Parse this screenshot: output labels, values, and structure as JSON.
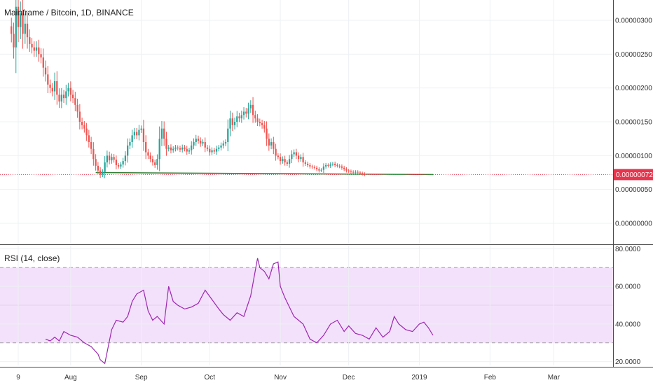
{
  "header": {
    "title": "Mainframe / Bitcoin, 1D, BINANCE"
  },
  "price_panel": {
    "last_price_label": "0.00000072",
    "last_price_color": "#e8344c",
    "up_color": "#26a69a",
    "down_color": "#ef5350"
  },
  "rsi_panel": {
    "title": "RSI (14, close)",
    "line_color": "#9c27b0",
    "band_color": "#f3e0fb"
  },
  "chart_data": [
    {
      "type": "candlestick",
      "name": "price",
      "ylim": [
        -3e-07,
        3.3e-06
      ],
      "y_ticks": [
        {
          "v": 3e-06,
          "label": "0.00000300"
        },
        {
          "v": 2.5e-06,
          "label": "0.00000250"
        },
        {
          "v": 2e-06,
          "label": "0.00000200"
        },
        {
          "v": 1.5e-06,
          "label": "0.00000150"
        },
        {
          "v": 1e-06,
          "label": "0.00000100"
        },
        {
          "v": 5e-07,
          "label": "0.00000050"
        },
        {
          "v": 0.0,
          "label": "0.00000000"
        }
      ],
      "last_price": 7.2e-07,
      "x_range": [
        "2018-07-01",
        "2019-03-27"
      ],
      "x_ticks": [
        {
          "date": "2018-07-09",
          "label": "9"
        },
        {
          "date": "2018-08-01",
          "label": "Aug"
        },
        {
          "date": "2018-09-01",
          "label": "Sep"
        },
        {
          "date": "2018-10-01",
          "label": "Oct"
        },
        {
          "date": "2018-11-01",
          "label": "Nov"
        },
        {
          "date": "2018-12-01",
          "label": "Dec"
        },
        {
          "date": "2019-01-01",
          "label": "2019"
        },
        {
          "date": "2019-02-01",
          "label": "Feb"
        },
        {
          "date": "2019-03-01",
          "label": "Mar"
        }
      ],
      "first_date": "2018-07-06",
      "closes": [
        2.8e-06,
        2.6e-06,
        3.2e-06,
        2.9e-06,
        3.1e-06,
        2.8e-06,
        2.95e-06,
        2.75e-06,
        2.65e-06,
        2.6e-06,
        2.55e-06,
        2.6e-06,
        2.5e-06,
        2.45e-06,
        2.3e-06,
        2.2e-06,
        2.05e-06,
        2e-06,
        1.95e-06,
        2.1e-06,
        1.9e-06,
        1.8e-06,
        1.9e-06,
        1.85e-06,
        1.95e-06,
        2e-06,
        1.9e-06,
        1.85e-06,
        1.75e-06,
        1.65e-06,
        1.5e-06,
        1.45e-06,
        1.4e-06,
        1.3e-06,
        1.2e-06,
        1.1e-06,
        9.5e-07,
        8.5e-07,
        7.8e-07,
        7.2e-07,
        7.6e-07,
        9e-07,
        1e-06,
        9.3e-07,
        9.8e-07,
        9.4e-07,
        8.6e-07,
        8.4e-07,
        8.7e-07,
        9.2e-07,
        1e-06,
        1.15e-06,
        1.2e-06,
        1.3e-06,
        1.35e-06,
        1.3e-06,
        1.38e-06,
        1.4e-06,
        1.2e-06,
        1.05e-06,
        1e-06,
        9.5e-07,
        9e-07,
        8.6e-07,
        9.5e-07,
        1.25e-06,
        1.4e-06,
        1.25e-06,
        1.1e-06,
        1.12e-06,
        1.08e-06,
        1.1e-06,
        1.12e-06,
        1.11e-06,
        1.09e-06,
        1.12e-06,
        1.1e-06,
        1.06e-06,
        1.08e-06,
        1.15e-06,
        1.2e-06,
        1.25e-06,
        1.22e-06,
        1.18e-06,
        1.2e-06,
        1.12e-06,
        1.1e-06,
        1.05e-06,
        1.08e-06,
        1.06e-06,
        1.1e-06,
        1.12e-06,
        1.15e-06,
        1.18e-06,
        1.2e-06,
        1.4e-06,
        1.55e-06,
        1.45e-06,
        1.5e-06,
        1.58e-06,
        1.55e-06,
        1.6e-06,
        1.65e-06,
        1.62e-06,
        1.7e-06,
        1.75e-06,
        1.6e-06,
        1.55e-06,
        1.5e-06,
        1.48e-06,
        1.45e-06,
        1.4e-06,
        1.25e-06,
        1.15e-06,
        1.2e-06,
        1.1e-06,
        1e-06,
        9.8e-07,
        9.2e-07,
        9.5e-07,
        9e-07,
        8.8e-07,
        9.5e-07,
        1.02e-06,
        1.05e-06,
        1e-06,
        9.5e-07,
        9.8e-07,
        9e-07,
        8.8e-07,
        8.6e-07,
        8.4e-07,
        8.3e-07,
        8.2e-07,
        8e-07,
        7.8e-07,
        7.9e-07,
        8.4e-07,
        8.6e-07,
        8.5e-07,
        8.7e-07,
        8.8e-07,
        8.6e-07,
        8.5e-07,
        8.4e-07,
        8.2e-07,
        8e-07,
        7.8e-07,
        7.7e-07,
        7.6e-07,
        7.5e-07,
        7.6e-07,
        7.5e-07,
        7.4e-07,
        7.3e-07,
        7.2e-07
      ],
      "support_line": {
        "from": "2018-08-12",
        "to": "2019-01-07",
        "start_value": 7.5e-07,
        "end_value": 7.2e-07
      }
    },
    {
      "type": "line",
      "name": "RSI",
      "ylim": [
        18,
        82
      ],
      "y_ticks": [
        {
          "v": 80,
          "label": "80.0000"
        },
        {
          "v": 60,
          "label": "60.0000"
        },
        {
          "v": 40,
          "label": "40.0000"
        },
        {
          "v": 20,
          "label": "20.0000"
        }
      ],
      "band": [
        30,
        70
      ],
      "mid_line": 50,
      "x": [
        "2018-07-21",
        "2018-07-23",
        "2018-07-25",
        "2018-07-27",
        "2018-07-29",
        "2018-08-01",
        "2018-08-04",
        "2018-08-07",
        "2018-08-10",
        "2018-08-13",
        "2018-08-14",
        "2018-08-16",
        "2018-08-19",
        "2018-08-21",
        "2018-08-24",
        "2018-08-26",
        "2018-08-28",
        "2018-08-30",
        "2018-09-02",
        "2018-09-04",
        "2018-09-06",
        "2018-09-08",
        "2018-09-11",
        "2018-09-13",
        "2018-09-15",
        "2018-09-17",
        "2018-09-20",
        "2018-09-23",
        "2018-09-26",
        "2018-09-29",
        "2018-10-02",
        "2018-10-05",
        "2018-10-07",
        "2018-10-10",
        "2018-10-13",
        "2018-10-16",
        "2018-10-19",
        "2018-10-22",
        "2018-10-23",
        "2018-10-25",
        "2018-10-27",
        "2018-10-29",
        "2018-10-31",
        "2018-11-01",
        "2018-11-03",
        "2018-11-07",
        "2018-11-11",
        "2018-11-14",
        "2018-11-17",
        "2018-11-20",
        "2018-11-23",
        "2018-11-26",
        "2018-11-29",
        "2018-12-01",
        "2018-12-04",
        "2018-12-07",
        "2018-12-10",
        "2018-12-13",
        "2018-12-16",
        "2018-12-19",
        "2018-12-21",
        "2018-12-23",
        "2018-12-26",
        "2018-12-29",
        "2019-01-01",
        "2019-01-03",
        "2019-01-05",
        "2019-01-07"
      ],
      "values": [
        32,
        31,
        33,
        31,
        36,
        34,
        33,
        30,
        28,
        24,
        21,
        19,
        37,
        42,
        41,
        44,
        52,
        56,
        58,
        47,
        42,
        44,
        40,
        60,
        52,
        50,
        48,
        49,
        51,
        58,
        53,
        48,
        45,
        42,
        46,
        44,
        55,
        75,
        70,
        68,
        64,
        72,
        73,
        60,
        54,
        44,
        40,
        32,
        30,
        34,
        40,
        42,
        36,
        39,
        35,
        34,
        32,
        38,
        33,
        36,
        44,
        40,
        37,
        36,
        40,
        41,
        38,
        34
      ]
    }
  ]
}
